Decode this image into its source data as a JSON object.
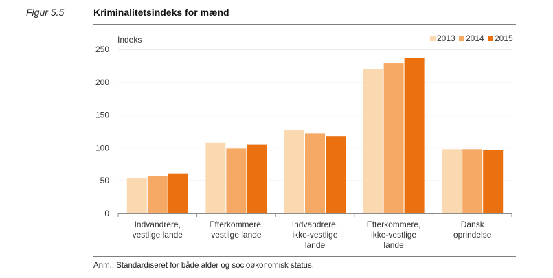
{
  "figure": {
    "label": "Figur 5.5",
    "title": "Kriminalitetsindeks for mænd",
    "note": "Anm.: Standardiseret for både alder og socioøkonomisk status."
  },
  "chart_data": {
    "type": "bar",
    "ylabel": "Indeks",
    "ylim": [
      0,
      250
    ],
    "yticks": [
      0,
      50,
      100,
      150,
      200,
      250
    ],
    "grid": true,
    "legend_position": "top-right",
    "categories": [
      [
        "Indvandrere,",
        "vestlige lande"
      ],
      [
        "Efterkommere,",
        "vestlige lande"
      ],
      [
        "Indvandrere,",
        "ikke-vestlige",
        "lande"
      ],
      [
        "Efterkommere,",
        "ikke-vestlige",
        "lande"
      ],
      [
        "Dansk",
        "oprindelse"
      ]
    ],
    "series": [
      {
        "name": "2013",
        "color": "#fbd9b0",
        "values": [
          54,
          108,
          127,
          220,
          98
        ]
      },
      {
        "name": "2014",
        "color": "#f5a965",
        "values": [
          57,
          99,
          122,
          229,
          98
        ]
      },
      {
        "name": "2015",
        "color": "#ea7010",
        "values": [
          61,
          105,
          118,
          237,
          97
        ]
      }
    ]
  }
}
